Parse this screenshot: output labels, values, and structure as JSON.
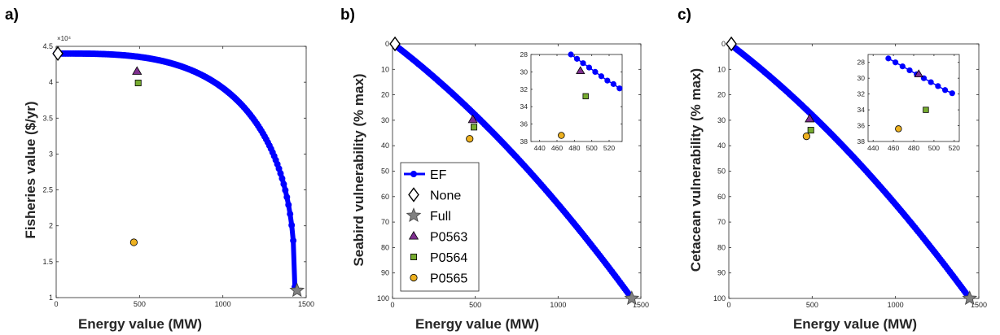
{
  "chart_data": [
    {
      "type": "scatter",
      "panel_label": "a)",
      "xlabel": "Energy value (MW)",
      "ylabel": "Fisheries value ($/yr)",
      "y_exponent": "×10⁴",
      "xlim": [
        0,
        1500
      ],
      "ylim": [
        1,
        4.5
      ],
      "xticks": [
        0,
        500,
        1000,
        1500
      ],
      "yticks": [
        1,
        1.5,
        2,
        2.5,
        3,
        3.5,
        4,
        4.5
      ],
      "y_reversed": false,
      "frontier": {
        "name": "EF",
        "x_start": 0,
        "x_end": 1432,
        "y_max": 4.4,
        "y_min": 1.15
      },
      "points": [
        {
          "name": "None",
          "x": 10,
          "y": 4.4
        },
        {
          "name": "Full",
          "x": 1445,
          "y": 1.1
        },
        {
          "name": "P0563",
          "x": 485,
          "y": 4.15
        },
        {
          "name": "P0564",
          "x": 492,
          "y": 3.99
        },
        {
          "name": "P0565",
          "x": 466,
          "y": 1.77
        }
      ]
    },
    {
      "type": "scatter",
      "panel_label": "b)",
      "xlabel": "Energy value (MW)",
      "ylabel": "Seabird vulnerability (% max)",
      "xlim": [
        0,
        1500
      ],
      "ylim": [
        0,
        100
      ],
      "xticks": [
        0,
        500,
        1000,
        1500
      ],
      "yticks": [
        0,
        10,
        20,
        30,
        40,
        50,
        60,
        70,
        80,
        90,
        100
      ],
      "y_reversed": true,
      "frontier": {
        "name": "EF",
        "x_start": 15,
        "x_end": 1440,
        "y_start": 0.5,
        "y_end": 99.5
      },
      "points": [
        {
          "name": "None",
          "x": 15,
          "y": 0
        },
        {
          "name": "Full",
          "x": 1445,
          "y": 100
        },
        {
          "name": "P0563",
          "x": 485,
          "y": 29.8
        },
        {
          "name": "P0564",
          "x": 492,
          "y": 32.7
        },
        {
          "name": "P0565",
          "x": 466,
          "y": 37.3
        }
      ],
      "inset": {
        "xlim": [
          430,
          535
        ],
        "ylim": [
          28,
          38
        ],
        "xticks": [
          440,
          460,
          480,
          500,
          520
        ],
        "yticks": [
          28,
          30,
          32,
          34,
          36,
          38
        ],
        "frontier": [
          [
            476,
            28.0
          ],
          [
            483,
            28.5
          ],
          [
            490,
            29.0
          ],
          [
            497,
            29.5
          ],
          [
            504,
            30.0
          ],
          [
            511,
            30.5
          ],
          [
            518,
            31.0
          ],
          [
            525,
            31.4
          ],
          [
            532,
            31.9
          ]
        ],
        "points": [
          {
            "name": "P0563",
            "x": 487,
            "y": 29.9
          },
          {
            "name": "P0564",
            "x": 493,
            "y": 32.8
          },
          {
            "name": "P0565",
            "x": 465,
            "y": 37.3
          }
        ]
      }
    },
    {
      "type": "scatter",
      "panel_label": "c)",
      "xlabel": "Energy value (MW)",
      "ylabel": "Cetacean vulnerability (% max)",
      "xlim": [
        0,
        1500
      ],
      "ylim": [
        0,
        100
      ],
      "xticks": [
        0,
        500,
        1000,
        1500
      ],
      "yticks": [
        0,
        10,
        20,
        30,
        40,
        50,
        60,
        70,
        80,
        90,
        100
      ],
      "y_reversed": true,
      "frontier": {
        "name": "EF",
        "x_start": 15,
        "x_end": 1440,
        "y_start": 0.5,
        "y_end": 99.5
      },
      "points": [
        {
          "name": "None",
          "x": 15,
          "y": 0
        },
        {
          "name": "Full",
          "x": 1445,
          "y": 100
        },
        {
          "name": "P0563",
          "x": 485,
          "y": 29.5
        },
        {
          "name": "P0564",
          "x": 492,
          "y": 33.9
        },
        {
          "name": "P0565",
          "x": 466,
          "y": 36.3
        }
      ],
      "inset": {
        "xlim": [
          435,
          525
        ],
        "ylim": [
          27,
          38
        ],
        "xticks": [
          440,
          460,
          480,
          500,
          520
        ],
        "yticks": [
          28,
          30,
          32,
          34,
          36,
          38
        ],
        "frontier": [
          [
            455,
            27.5
          ],
          [
            462,
            28.0
          ],
          [
            469,
            28.5
          ],
          [
            476,
            29.0
          ],
          [
            483,
            29.5
          ],
          [
            490,
            30.0
          ],
          [
            497,
            30.5
          ],
          [
            504,
            31.0
          ],
          [
            511,
            31.5
          ],
          [
            518,
            31.9
          ]
        ],
        "points": [
          {
            "name": "P0563",
            "x": 485,
            "y": 29.5
          },
          {
            "name": "P0564",
            "x": 492,
            "y": 34.0
          },
          {
            "name": "P0565",
            "x": 465,
            "y": 36.4
          }
        ]
      }
    }
  ],
  "legend": {
    "placement": "lower-left of panel b",
    "entries": [
      {
        "label": "EF",
        "marker": "line-circle",
        "color": "#0000ff"
      },
      {
        "label": "None",
        "marker": "diamond",
        "color": "#ffffff"
      },
      {
        "label": "Full",
        "marker": "star",
        "color": "#808080"
      },
      {
        "label": "P0563",
        "marker": "triangle",
        "color": "#7e2f8e"
      },
      {
        "label": "P0564",
        "marker": "square",
        "color": "#77ac30"
      },
      {
        "label": "P0565",
        "marker": "circle",
        "color": "#edb120"
      }
    ]
  },
  "colors": {
    "frontier": "#0000ff",
    "none": "#ffffff",
    "full": "#808080",
    "p0563": "#7e2f8e",
    "p0564": "#77ac30",
    "p0565": "#edb120"
  }
}
